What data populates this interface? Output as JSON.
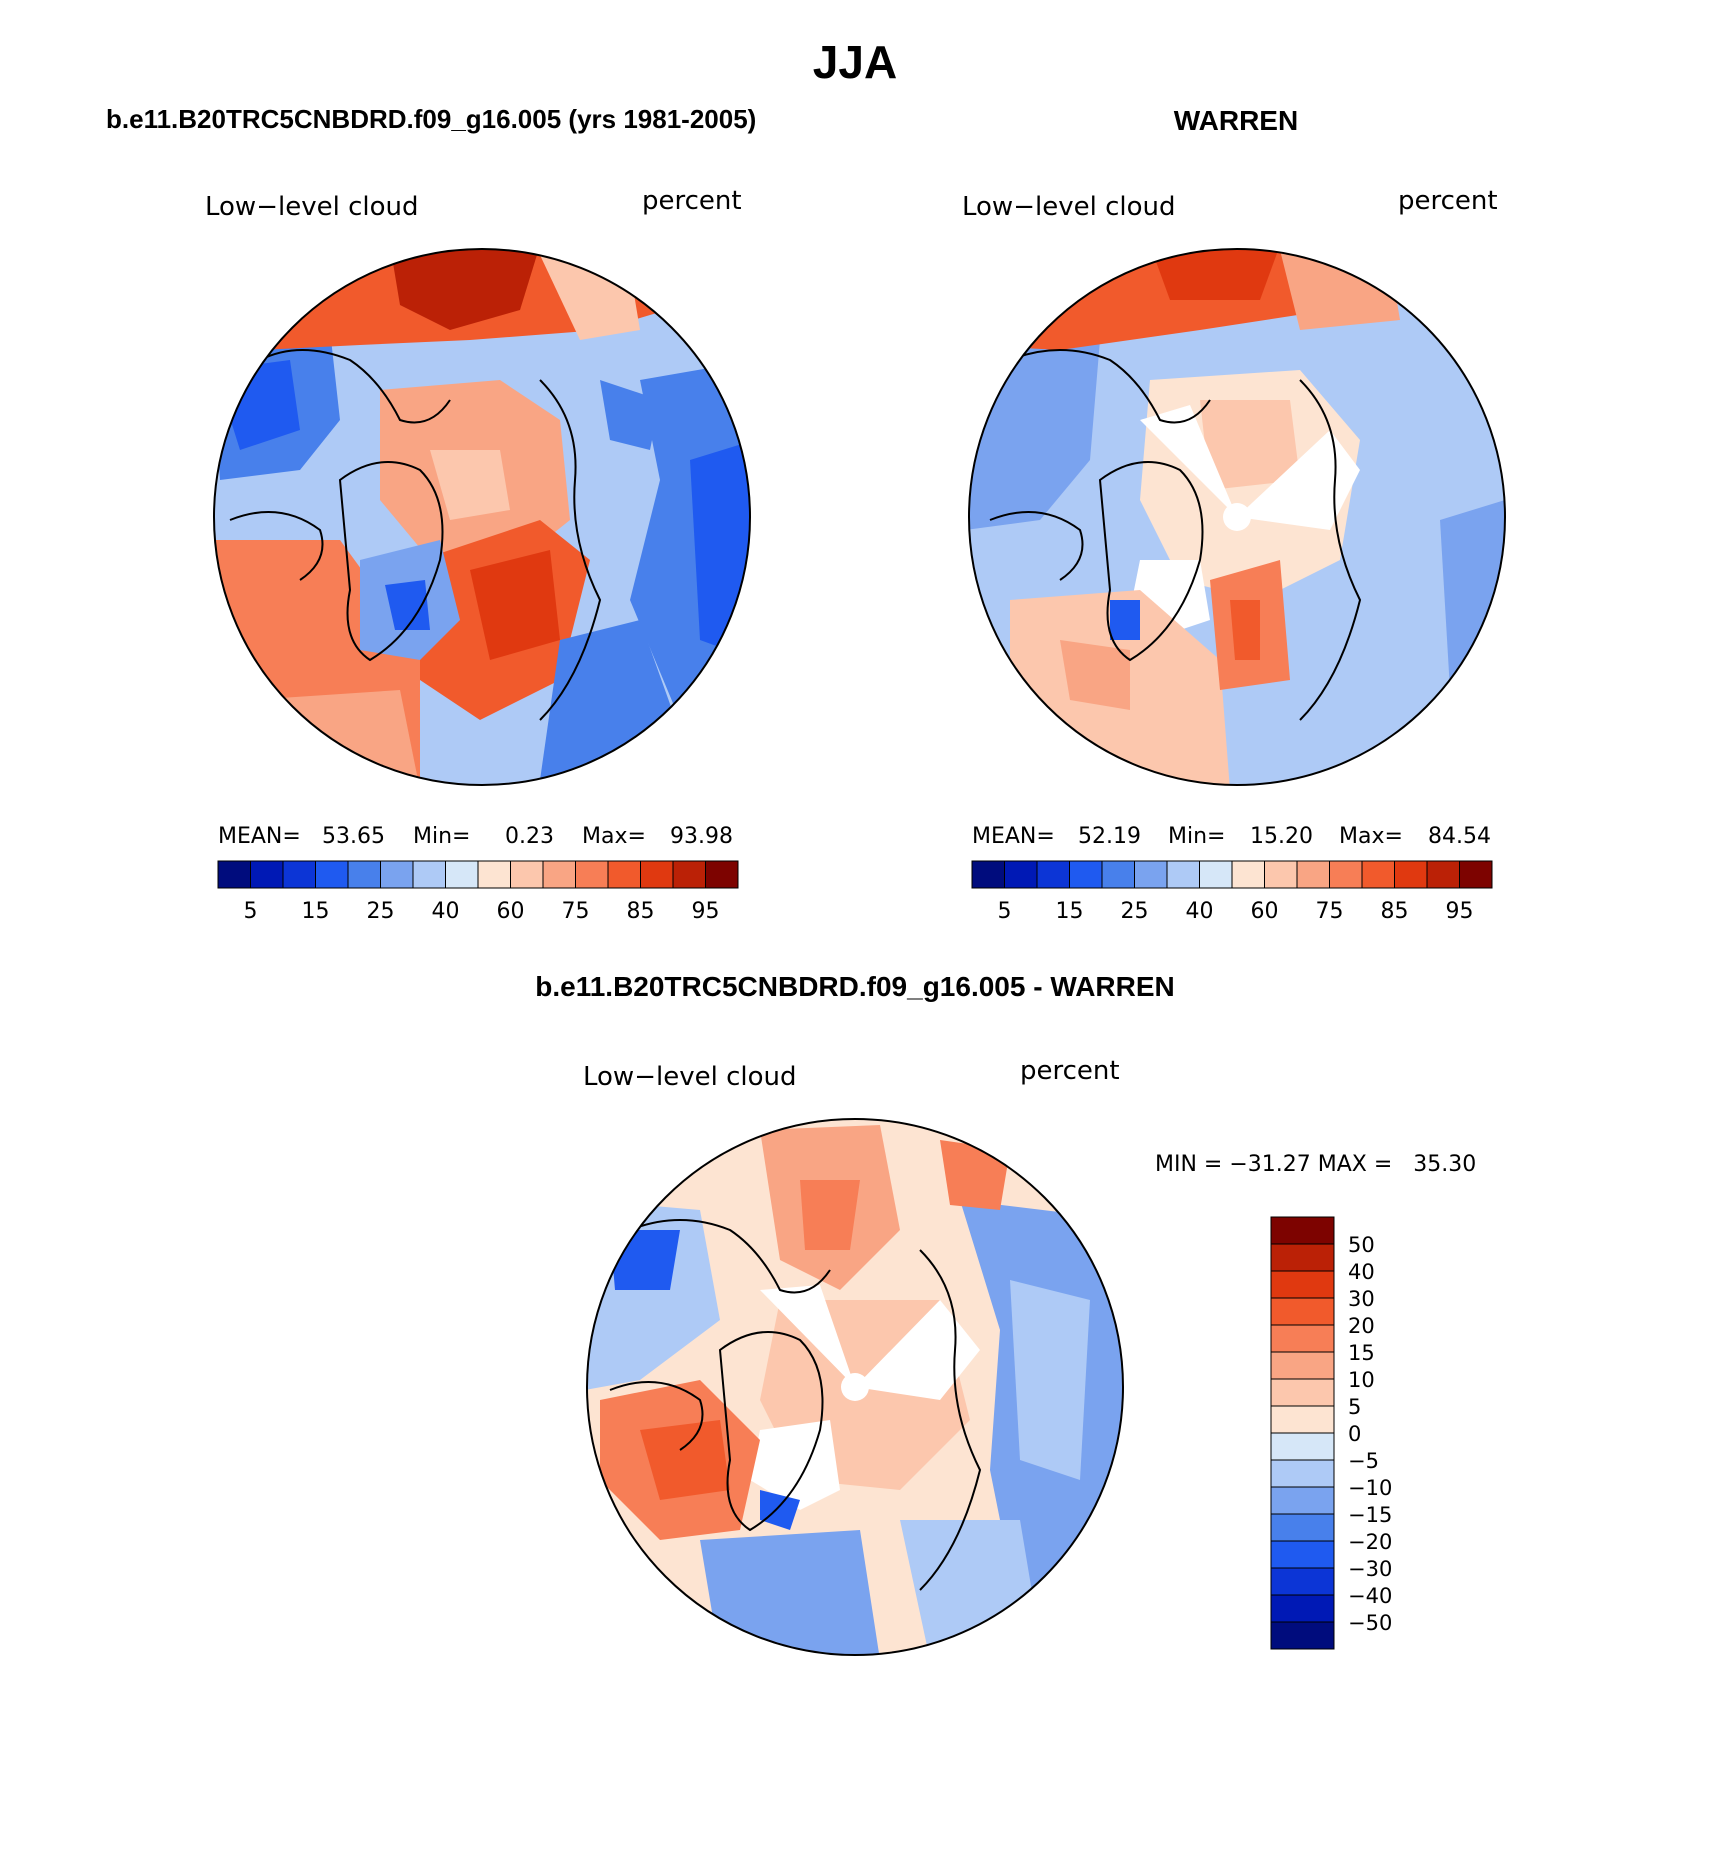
{
  "main_title": "JJA",
  "colors": {
    "abs_scale": [
      "#000c7d",
      "#0019b5",
      "#0c35d6",
      "#1f5af0",
      "#4880eb",
      "#7aa3ef",
      "#aecaf6",
      "#d6e7f8",
      "#fde4d2",
      "#fcc7ad",
      "#f9a584",
      "#f77e56",
      "#f15a2c",
      "#e03910",
      "#bb2106",
      "#7d0300"
    ],
    "diff_scale": [
      "#000c7d",
      "#0019b5",
      "#0c35d6",
      "#1f5af0",
      "#4880eb",
      "#7aa3ef",
      "#aecaf6",
      "#d6e7f8",
      "#fde4d2",
      "#fcc7ad",
      "#f9a584",
      "#f77e56",
      "#f15a2c",
      "#e03910",
      "#bb2106",
      "#7d0300"
    ]
  },
  "panels": [
    {
      "title": "b.e11.B20TRC5CNBDRD.f09_g16.005 (yrs 1981-2005)",
      "variable": "Low−level cloud",
      "units": "percent",
      "stats": {
        "mean_label": "MEAN=",
        "mean": "53.65",
        "min_label": "Min=",
        "min": "0.23",
        "max_label": "Max=",
        "max": "93.98"
      },
      "colorbar_ticks": [
        "5",
        "15",
        "25",
        "40",
        "60",
        "75",
        "85",
        "95"
      ]
    },
    {
      "title": "WARREN",
      "variable": "Low−level cloud",
      "units": "percent",
      "stats": {
        "mean_label": "MEAN=",
        "mean": "52.19",
        "min_label": "Min=",
        "min": "15.20",
        "max_label": "Max=",
        "max": "84.54"
      },
      "colorbar_ticks": [
        "5",
        "15",
        "25",
        "40",
        "60",
        "75",
        "85",
        "95"
      ]
    },
    {
      "title": "b.e11.B20TRC5CNBDRD.f09_g16.005 - WARREN",
      "variable": "Low−level cloud",
      "units": "percent",
      "stats_text": "MIN = −31.27 MAX =   35.30",
      "colorbar_ticks": [
        "50",
        "40",
        "30",
        "20",
        "15",
        "10",
        "5",
        "0",
        "−5",
        "−10",
        "−15",
        "−20",
        "−30",
        "−40",
        "−50"
      ]
    }
  ]
}
